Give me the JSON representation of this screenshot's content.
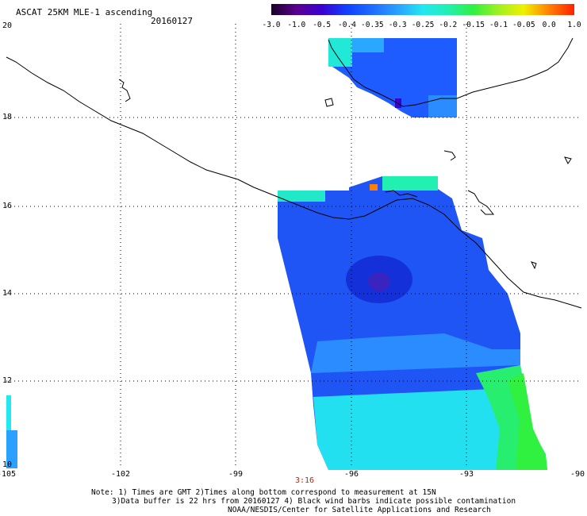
{
  "header": {
    "title": "ASCAT 25KM MLE-1 ascending",
    "date": "20160127"
  },
  "colorbar": {
    "labels": [
      "-3.0",
      "-1.0",
      "-0.5",
      "-0.4",
      "-0.35",
      "-0.3",
      "-0.25",
      "-0.2",
      "-0.15",
      "-0.1",
      "-0.05",
      "0.0",
      "1.0"
    ],
    "colors": [
      "#1a0026",
      "#5a0090",
      "#3a00d0",
      "#1040ff",
      "#1f6cff",
      "#2aa0ff",
      "#22e8f0",
      "#22f0b0",
      "#30f040",
      "#a0f020",
      "#f0f000",
      "#ff8000",
      "#ff2000"
    ]
  },
  "axes": {
    "x_labels": [
      "-105",
      "-102",
      "-99",
      "-96",
      "-93",
      "-90"
    ],
    "y_labels": [
      "20",
      "18",
      "16",
      "14",
      "12",
      "10"
    ]
  },
  "time_marker": "3:16",
  "notes": {
    "line1": "Note: 1) Times are GMT 2)Times along bottom correspond to measurement at 15N",
    "line2": "3)Data buffer is 22 hrs from 20160127 4) Black wind barbs indicate possible contamination",
    "line3": "NOAA/NESDIS/Center for Satellite Applications and Research"
  }
}
